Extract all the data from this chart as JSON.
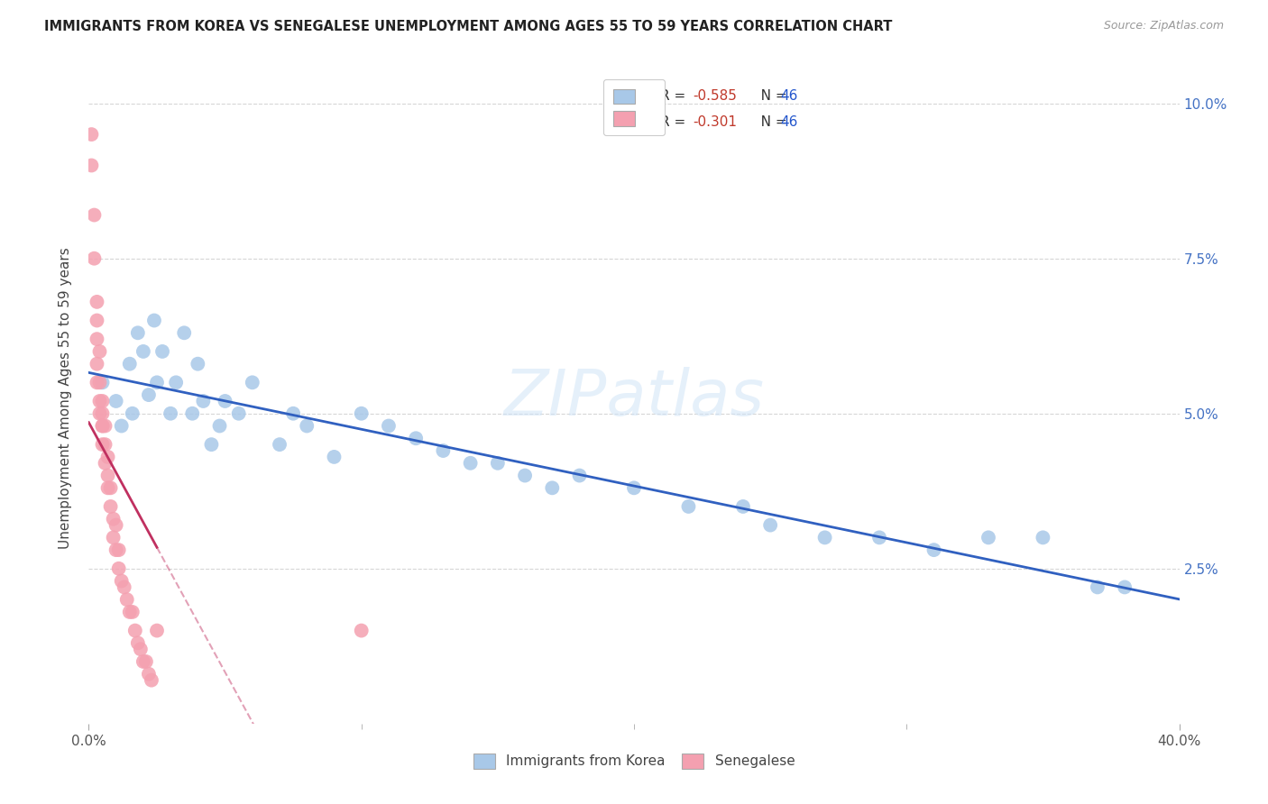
{
  "title": "IMMIGRANTS FROM KOREA VS SENEGALESE UNEMPLOYMENT AMONG AGES 55 TO 59 YEARS CORRELATION CHART",
  "source": "Source: ZipAtlas.com",
  "ylabel": "Unemployment Among Ages 55 to 59 years",
  "xlim": [
    0.0,
    0.4
  ],
  "ylim": [
    0.0,
    0.105
  ],
  "yticks": [
    0.025,
    0.05,
    0.075,
    0.1
  ],
  "ytick_labels": [
    "2.5%",
    "5.0%",
    "7.5%",
    "10.0%"
  ],
  "xticks": [
    0.0,
    0.4
  ],
  "xtick_labels": [
    "0.0%",
    "40.0%"
  ],
  "korea_R": -0.585,
  "korea_N": 46,
  "senegal_R": -0.301,
  "senegal_N": 46,
  "korea_color": "#a8c8e8",
  "senegal_color": "#f4a0b0",
  "korea_line_color": "#3060c0",
  "senegal_line_color": "#c03060",
  "korea_x": [
    0.005,
    0.01,
    0.012,
    0.015,
    0.016,
    0.018,
    0.02,
    0.022,
    0.024,
    0.025,
    0.027,
    0.03,
    0.032,
    0.035,
    0.038,
    0.04,
    0.042,
    0.045,
    0.048,
    0.05,
    0.055,
    0.06,
    0.07,
    0.075,
    0.08,
    0.09,
    0.1,
    0.11,
    0.12,
    0.13,
    0.14,
    0.15,
    0.16,
    0.17,
    0.18,
    0.2,
    0.22,
    0.24,
    0.25,
    0.27,
    0.29,
    0.31,
    0.33,
    0.35,
    0.37,
    0.38
  ],
  "korea_y": [
    0.055,
    0.052,
    0.048,
    0.058,
    0.05,
    0.063,
    0.06,
    0.053,
    0.065,
    0.055,
    0.06,
    0.05,
    0.055,
    0.063,
    0.05,
    0.058,
    0.052,
    0.045,
    0.048,
    0.052,
    0.05,
    0.055,
    0.045,
    0.05,
    0.048,
    0.043,
    0.05,
    0.048,
    0.046,
    0.044,
    0.042,
    0.042,
    0.04,
    0.038,
    0.04,
    0.038,
    0.035,
    0.035,
    0.032,
    0.03,
    0.03,
    0.028,
    0.03,
    0.03,
    0.022,
    0.022
  ],
  "senegal_x": [
    0.001,
    0.001,
    0.002,
    0.002,
    0.003,
    0.003,
    0.003,
    0.003,
    0.003,
    0.004,
    0.004,
    0.004,
    0.004,
    0.005,
    0.005,
    0.005,
    0.005,
    0.005,
    0.006,
    0.006,
    0.006,
    0.007,
    0.007,
    0.007,
    0.008,
    0.008,
    0.009,
    0.009,
    0.01,
    0.01,
    0.011,
    0.011,
    0.012,
    0.013,
    0.014,
    0.015,
    0.016,
    0.017,
    0.018,
    0.019,
    0.02,
    0.021,
    0.022,
    0.023,
    0.025,
    0.1
  ],
  "senegal_y": [
    0.095,
    0.09,
    0.075,
    0.082,
    0.068,
    0.065,
    0.062,
    0.058,
    0.055,
    0.06,
    0.055,
    0.052,
    0.05,
    0.05,
    0.048,
    0.052,
    0.048,
    0.045,
    0.048,
    0.045,
    0.042,
    0.043,
    0.04,
    0.038,
    0.038,
    0.035,
    0.033,
    0.03,
    0.032,
    0.028,
    0.028,
    0.025,
    0.023,
    0.022,
    0.02,
    0.018,
    0.018,
    0.015,
    0.013,
    0.012,
    0.01,
    0.01,
    0.008,
    0.007,
    0.015,
    0.015
  ],
  "background_color": "#ffffff",
  "grid_color": "#cccccc",
  "watermark": "ZIPatlas"
}
